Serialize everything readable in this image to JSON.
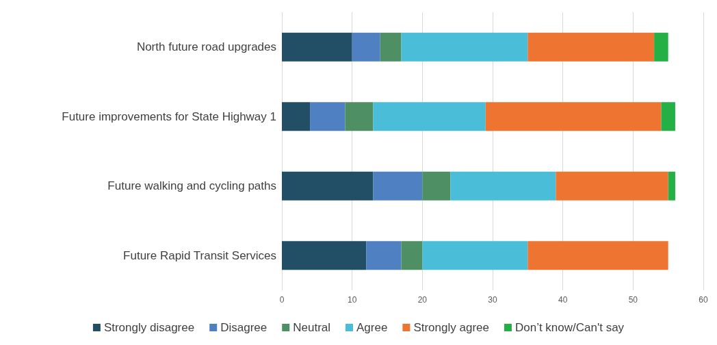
{
  "chart_data": {
    "type": "bar",
    "orientation": "horizontal",
    "stacked": true,
    "categories": [
      "North future road upgrades",
      "Future improvements for State Highway 1",
      "Future walking and cycling paths",
      "Future Rapid Transit Services"
    ],
    "series": [
      {
        "name": "Strongly disagree",
        "color": "#224e66",
        "values": [
          10,
          4,
          13,
          12
        ]
      },
      {
        "name": "Disagree",
        "color": "#4f81c2",
        "values": [
          4,
          5,
          7,
          5
        ]
      },
      {
        "name": "Neutral",
        "color": "#4e8f64",
        "values": [
          3,
          4,
          4,
          3
        ]
      },
      {
        "name": "Agree",
        "color": "#4abdd8",
        "values": [
          18,
          16,
          15,
          15
        ]
      },
      {
        "name": "Strongly agree",
        "color": "#ee7431",
        "values": [
          18,
          25,
          16,
          20
        ]
      },
      {
        "name": "Don’t know/Can't say",
        "color": "#24b045",
        "values": [
          2,
          2,
          1,
          0
        ]
      }
    ],
    "xlim": [
      0,
      60
    ],
    "xticks": [
      0,
      10,
      20,
      30,
      40,
      50,
      60
    ],
    "grid": "x",
    "legend": "bottom"
  }
}
